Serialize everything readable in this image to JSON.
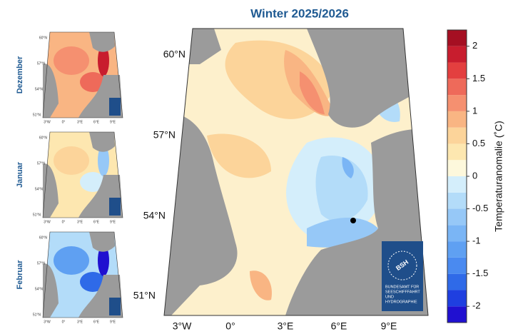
{
  "title": "Winter 2025/2026",
  "main_map": {
    "lat_labels": [
      "60°N",
      "57°N",
      "54°N",
      "51°N"
    ],
    "lon_labels": [
      "3°W",
      "0°",
      "3°E",
      "6°E",
      "9°E"
    ]
  },
  "colorbar": {
    "label": "Temperaturanomalie (˚C)",
    "lim": [
      -2.25,
      2.25
    ],
    "ticks": [
      -2,
      -1.5,
      -1,
      -0.5,
      0,
      0.5,
      1,
      1.5,
      2
    ],
    "levels": [
      -2.25,
      -2,
      -1.75,
      -1.5,
      -1.25,
      -1,
      -0.75,
      -0.5,
      -0.25,
      0,
      0.25,
      0.5,
      0.75,
      1,
      1.25,
      1.5,
      1.75,
      2,
      2.25
    ],
    "colors": [
      "#2010d0",
      "#1f3fe0",
      "#2f6ae8",
      "#4a8af0",
      "#5fa0f2",
      "#7ab5f5",
      "#96c8f7",
      "#b3dcf9",
      "#d4eefb",
      "#fdf8dc",
      "#fde7b0",
      "#fcd49a",
      "#f9b583",
      "#f59070",
      "#ee6a5a",
      "#e33f3f",
      "#c81d2e",
      "#a50f22"
    ]
  },
  "months": [
    {
      "name": "Dezember"
    },
    {
      "name": "Januar"
    },
    {
      "name": "Februar"
    }
  ],
  "logo": {
    "mark": "BSH",
    "lines": [
      "BUNDESAMT FÜR",
      "SEESCHIFFFAHRT",
      "UND",
      "HYDROGRAPHIE"
    ]
  }
}
